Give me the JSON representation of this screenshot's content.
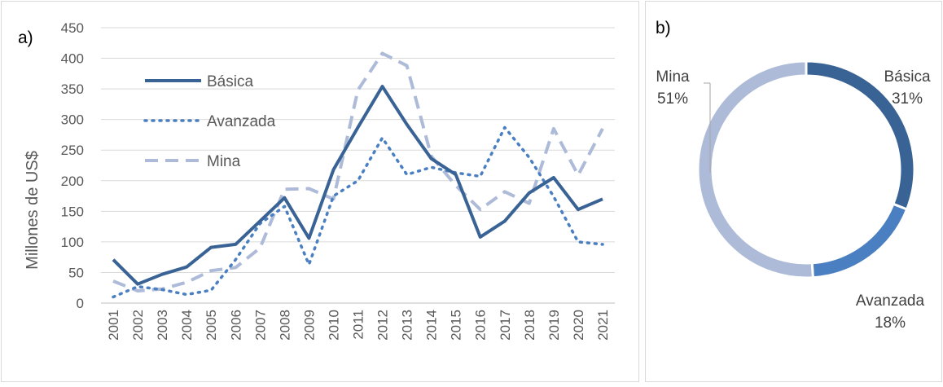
{
  "panels": {
    "a_label": "a)",
    "b_label": "b)"
  },
  "chart_data": [
    {
      "type": "line",
      "title": "",
      "xlabel": "",
      "ylabel": "Millones de US$",
      "ylim": [
        0,
        450
      ],
      "yticks": [
        0,
        50,
        100,
        150,
        200,
        250,
        300,
        350,
        400,
        450
      ],
      "grid": true,
      "legend_position": "top-left",
      "x": [
        "2001",
        "2002",
        "2003",
        "2004",
        "2005",
        "2006",
        "2007",
        "2008",
        "2009",
        "2010",
        "2011",
        "2012",
        "2013",
        "2014",
        "2015",
        "2016",
        "2017",
        "2018",
        "2019",
        "2020",
        "2021"
      ],
      "series": [
        {
          "name": "Básica",
          "style": "solid",
          "color": "#3a6395",
          "values": [
            71,
            31,
            47,
            59,
            91,
            96,
            134,
            172,
            106,
            218,
            287,
            354,
            292,
            236,
            210,
            108,
            134,
            180,
            205,
            153,
            170
          ]
        },
        {
          "name": "Avanzada",
          "style": "dotted",
          "color": "#4a7fc1",
          "values": [
            10,
            27,
            22,
            14,
            21,
            71,
            130,
            158,
            63,
            175,
            200,
            270,
            210,
            222,
            213,
            207,
            287,
            238,
            174,
            100,
            96
          ]
        },
        {
          "name": "Mina",
          "style": "dashed",
          "color": "#adbbd8",
          "values": [
            36,
            20,
            23,
            34,
            53,
            58,
            90,
            186,
            187,
            170,
            348,
            408,
            388,
            240,
            192,
            153,
            182,
            163,
            285,
            209,
            285
          ]
        }
      ]
    },
    {
      "type": "pie",
      "variant": "donut",
      "slices": [
        {
          "name": "Básica",
          "value": 31,
          "label": "31%",
          "color": "#3a6395"
        },
        {
          "name": "Avanzada",
          "value": 18,
          "label": "18%",
          "color": "#4a7fc1"
        },
        {
          "name": "Mina",
          "value": 51,
          "label": "51%",
          "color": "#adbbd8"
        }
      ]
    }
  ]
}
